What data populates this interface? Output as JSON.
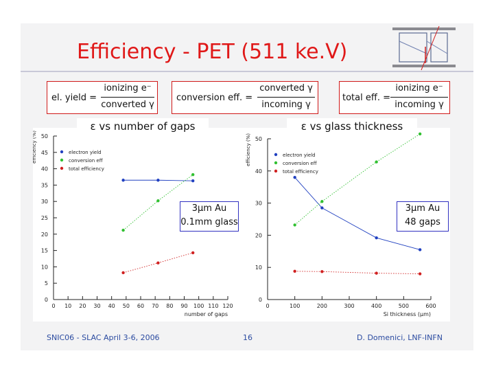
{
  "title": "Efficiency - PET (511 ke.V)",
  "formulas": [
    {
      "lhs": "el. yield =",
      "num": "ionizing e⁻",
      "den": "converted γ"
    },
    {
      "lhs": "conversion eff. =",
      "num": "converted γ",
      "den": "incoming γ"
    },
    {
      "lhs": "total eff. =",
      "num": "ionizing e⁻",
      "den": "incoming γ"
    }
  ],
  "left_header": "ε vs number of gaps",
  "right_header": "ε vs glass thickness",
  "left_info": {
    "line1": "3μm Au",
    "line2": "0.1mm glass"
  },
  "right_info": {
    "line1": "3μm Au",
    "line2": "48 gaps"
  },
  "footer": {
    "left": "SNIC06 - SLAC April 3-6, 2006",
    "center": "16",
    "right": "D. Domenici, LNF-INFN"
  },
  "chart_data": [
    {
      "type": "scatter",
      "xlabel": "number of gaps",
      "ylabel": "efficiency (%)",
      "xlim": [
        0,
        120
      ],
      "ylim": [
        0,
        50
      ],
      "xticks": [
        0,
        10,
        20,
        30,
        40,
        50,
        60,
        70,
        80,
        90,
        100,
        110,
        120
      ],
      "yticks": [
        0,
        5,
        10,
        15,
        20,
        25,
        30,
        35,
        40,
        45,
        50
      ],
      "legend": "top-left",
      "series": [
        {
          "name": "electron yield",
          "color": "#2040c0",
          "x": [
            48,
            72,
            96
          ],
          "y": [
            36.5,
            36.5,
            36.3
          ],
          "connect": "solid"
        },
        {
          "name": "conversion eff",
          "color": "#30c030",
          "x": [
            48,
            72,
            96
          ],
          "y": [
            21.2,
            30.2,
            38.2
          ],
          "connect": "dotted"
        },
        {
          "name": "total efficiency",
          "color": "#d02020",
          "x": [
            48,
            72,
            96
          ],
          "y": [
            8.2,
            11.2,
            14.3
          ],
          "connect": "dotted"
        }
      ]
    },
    {
      "type": "scatter",
      "xlabel": "Si thickness (μm)",
      "ylabel": "efficiency (%)",
      "xlim": [
        0,
        600
      ],
      "ylim": [
        0,
        50
      ],
      "xticks": [
        0,
        100,
        200,
        300,
        400,
        500,
        600
      ],
      "yticks": [
        0,
        10,
        20,
        30,
        40,
        50
      ],
      "legend": "top-left",
      "series": [
        {
          "name": "electron yield",
          "color": "#2040c0",
          "x": [
            100,
            200,
            400,
            560
          ],
          "y": [
            38,
            28.5,
            19.2,
            15.5
          ],
          "connect": "solid"
        },
        {
          "name": "conversion eff",
          "color": "#30c030",
          "x": [
            100,
            200,
            400,
            560
          ],
          "y": [
            23.2,
            30.5,
            42.8,
            51.5
          ],
          "connect": "dotted"
        },
        {
          "name": "total efficiency",
          "color": "#d02020",
          "x": [
            100,
            200,
            400,
            560
          ],
          "y": [
            8.8,
            8.7,
            8.2,
            8.0
          ],
          "connect": "dotted"
        }
      ]
    }
  ]
}
